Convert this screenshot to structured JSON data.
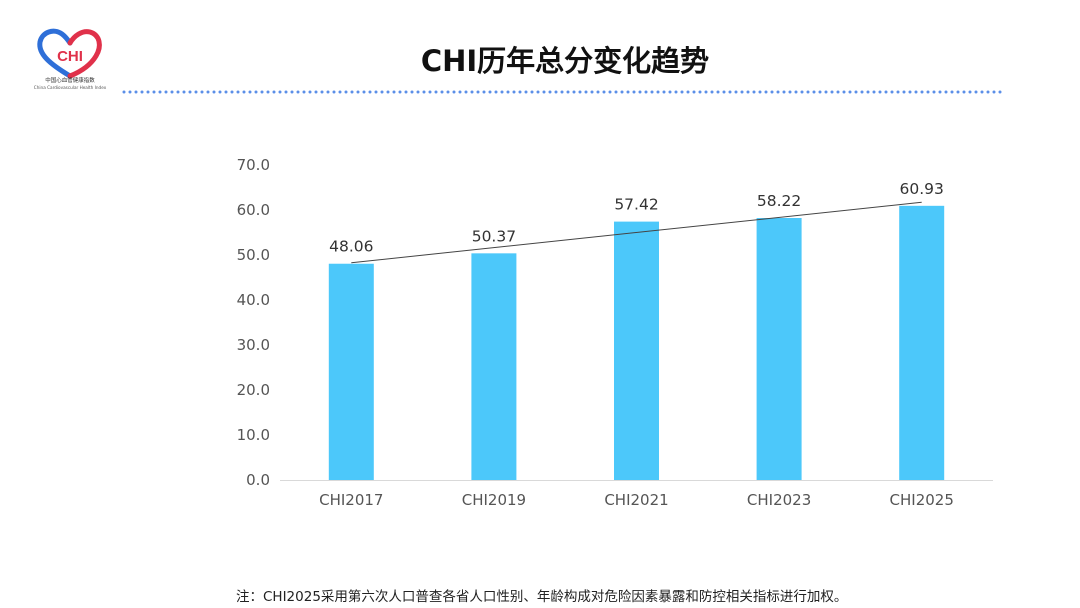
{
  "logo": {
    "text": "CHI",
    "caption_cn": "中国心血管健康指数",
    "caption_en": "China Cardiovascular Health Index",
    "colors": {
      "blue": "#2E6FD8",
      "red": "#E0314A"
    }
  },
  "title": "CHI历年总分变化趋势",
  "note": "注：CHI2025采用第六次人口普查各省人口性别、年龄构成对危险因素暴露和防控相关指标进行加权。",
  "chart_data": {
    "type": "bar",
    "categories": [
      "CHI2017",
      "CHI2019",
      "CHI2021",
      "CHI2023",
      "CHI2025"
    ],
    "values": [
      48.06,
      50.37,
      57.42,
      58.22,
      60.93
    ],
    "value_labels": [
      "48.06",
      "50.37",
      "57.42",
      "58.22",
      "60.93"
    ],
    "yticks": [
      "0.0",
      "10.0",
      "20.0",
      "30.0",
      "40.0",
      "50.0",
      "60.0",
      "70.0"
    ],
    "ylim": [
      0,
      70
    ],
    "trendline": true,
    "grid": false,
    "bar_color": "#4CC8FA",
    "title": "",
    "xlabel": "",
    "ylabel": ""
  }
}
